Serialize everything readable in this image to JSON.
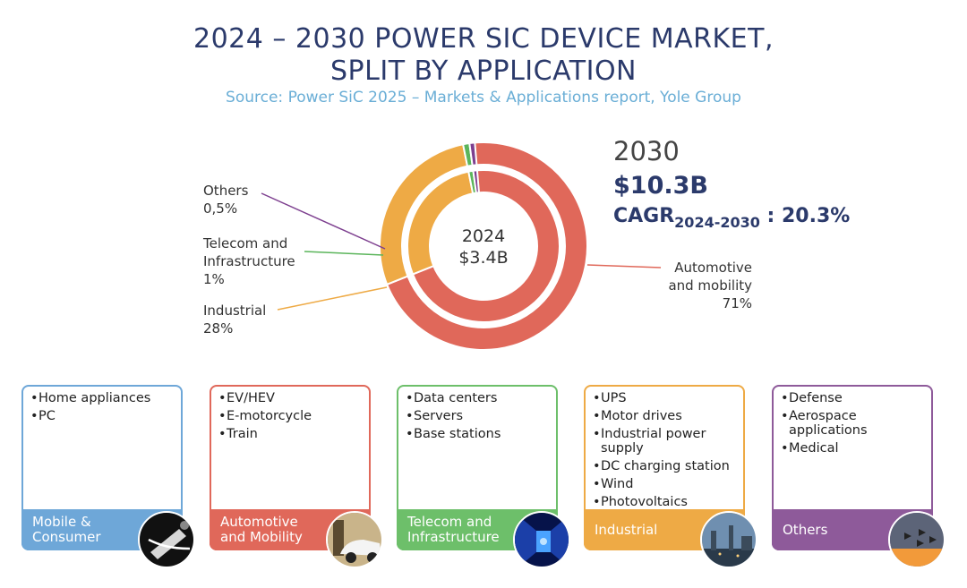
{
  "title": {
    "line1": "2024 – 2030 POWER SIC DEVICE MARKET,",
    "line2": "SPLIT BY APPLICATION",
    "source": "Source: Power SiC 2025 – Markets & Applications report, Yole Group"
  },
  "chart_data": {
    "type": "pie",
    "rings": [
      {
        "name": "2024",
        "slices": [
          {
            "label": "Automotive and mobility",
            "value": 71
          },
          {
            "label": "Industrial",
            "value": 28
          },
          {
            "label": "Telecom and Infrastructure",
            "value": 1
          },
          {
            "label": "Others",
            "value": 0.5
          }
        ]
      },
      {
        "name": "2030",
        "slices": [
          {
            "label": "Automotive and mobility",
            "value": 71
          },
          {
            "label": "Industrial",
            "value": 28
          },
          {
            "label": "Telecom and Infrastructure",
            "value": 1
          },
          {
            "label": "Others",
            "value": 0.5
          }
        ]
      }
    ],
    "center_year": "2024",
    "center_value": "$3.4B",
    "labels": {
      "others": {
        "name": "Others",
        "pct": "0,5%"
      },
      "telecom": {
        "line1": "Telecom and",
        "line2": "Infrastructure",
        "pct": "1%"
      },
      "industrial": {
        "name": "Industrial",
        "pct": "28%"
      },
      "automotive": {
        "line1": "Automotive",
        "line2": "and mobility",
        "pct": "71%"
      }
    },
    "colors": {
      "automotive": "#e0685a",
      "industrial": "#eeaa45",
      "telecom": "#5bb55b",
      "others": "#7d3f8f"
    }
  },
  "stats": {
    "year": "2030",
    "value": "$10.3B",
    "cagr_label": "CAGR",
    "cagr_range": "2024-2030",
    "cagr_value": ": 20.3%"
  },
  "segments": [
    {
      "name": "Mobile &\nConsumer",
      "color": "#6ea7d8",
      "items": [
        "Home appliances",
        "PC"
      ],
      "photo": "laptop-photo"
    },
    {
      "name": "Automotive\nand Mobility",
      "color": "#e0685a",
      "items": [
        "EV/HEV",
        "E-motorcycle",
        "Train"
      ],
      "photo": "ev-charging-photo"
    },
    {
      "name": "Telecom and\nInfrastructure",
      "color": "#6dbf6a",
      "items": [
        "Data centers",
        "Servers",
        "Base stations"
      ],
      "photo": "server-room-photo"
    },
    {
      "name": "Industrial",
      "color": "#eeaa45",
      "items": [
        "UPS",
        "Motor drives",
        "Industrial power supply",
        "DC charging station",
        "Wind",
        "Photovoltaics"
      ],
      "photo": "factory-photo"
    },
    {
      "name": "Others",
      "color": "#8e5a9a",
      "items": [
        "Defense",
        "Aerospace applications",
        "Medical"
      ],
      "photo": "jets-photo"
    }
  ]
}
